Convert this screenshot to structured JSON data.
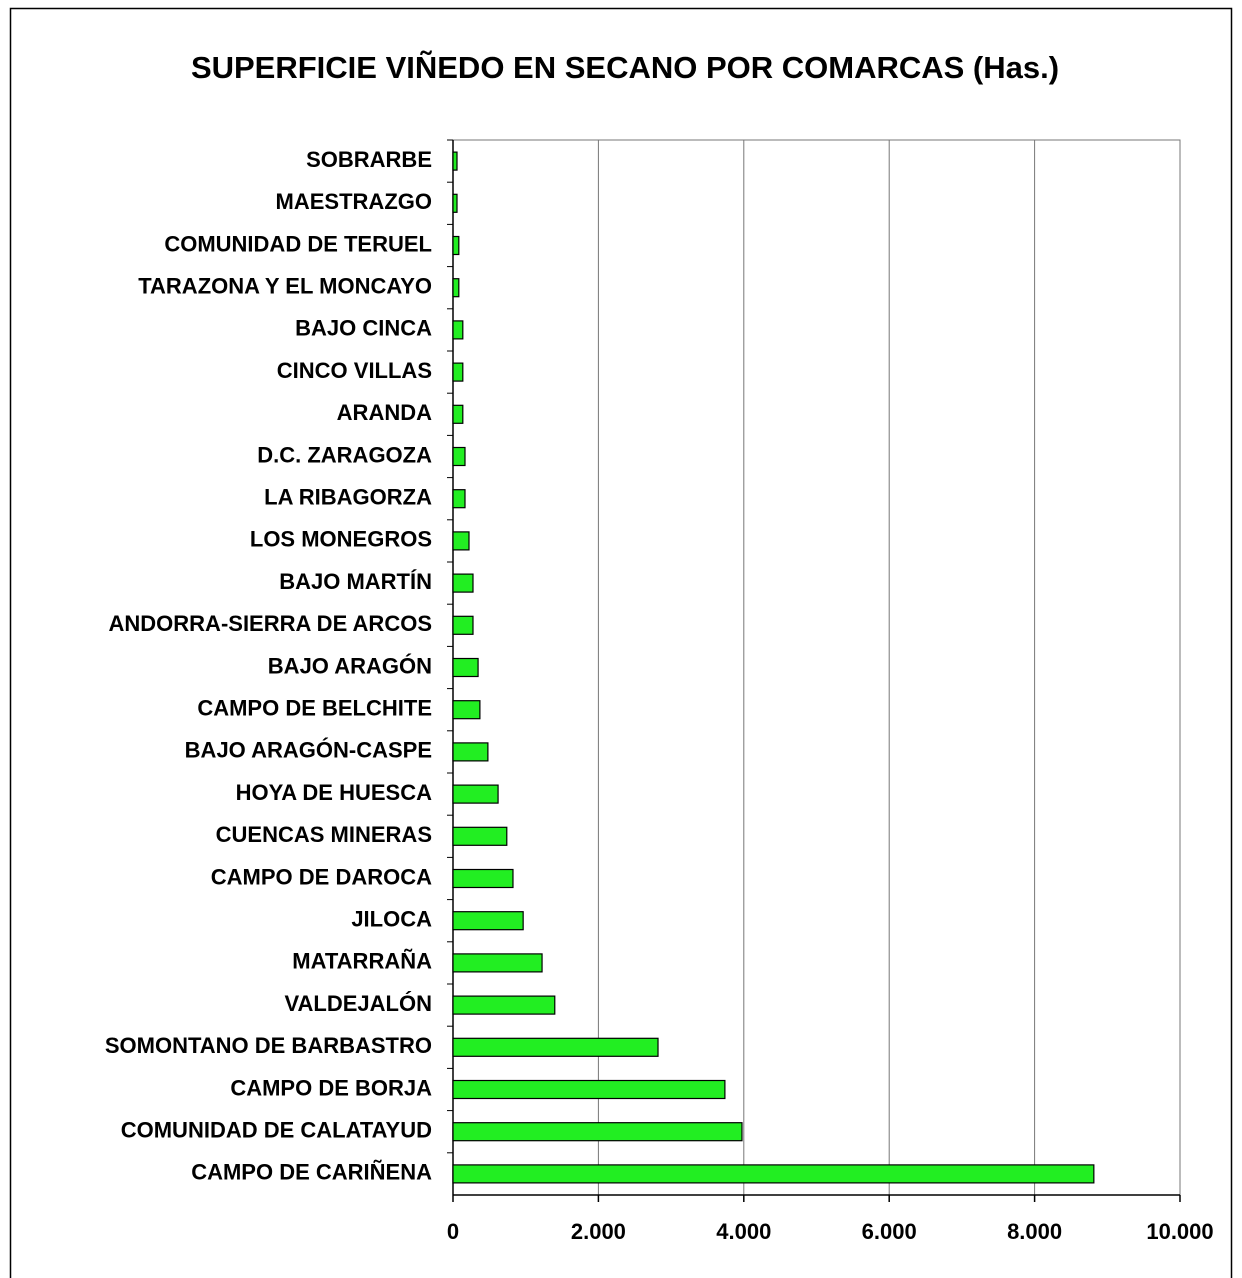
{
  "chart_data": {
    "type": "barh",
    "title": "SUPERFICIE VIÑEDO EN SECANO POR COMARCAS (Has.)",
    "categories": [
      "SOBRARBE",
      "MAESTRAZGO",
      "COMUNIDAD DE TERUEL",
      "TARAZONA Y EL  MONCAYO",
      "BAJO CINCA",
      "CINCO VILLAS",
      "ARANDA",
      "D.C. ZARAGOZA",
      "LA RIBAGORZA",
      "LOS MONEGROS",
      "BAJO MARTÍN",
      "ANDORRA-SIERRA DE ARCOS",
      "BAJO ARAGÓN",
      "CAMPO DE BELCHITE",
      "BAJO ARAGÓN-CASPE",
      "HOYA DE HUESCA",
      "CUENCAS MINERAS",
      "CAMPO DE DAROCA",
      "JILOCA",
      "MATARRAÑA",
      "VALDEJALÓN",
      "SOMONTANO DE BARBASTRO",
      "CAMPO DE BORJA",
      "COMUNIDAD DE CALATAYUD",
      "CAMPO DE CARIÑENA"
    ],
    "values": [
      55,
      55,
      80,
      80,
      135,
      135,
      135,
      165,
      165,
      220,
      275,
      275,
      345,
      370,
      480,
      620,
      740,
      825,
      965,
      1225,
      1400,
      2820,
      3740,
      3975,
      8815
    ],
    "color": "#22ee22",
    "xlim": [
      0,
      10000
    ],
    "xticks": [
      0,
      {
        "value": 2000,
        "label": "2.000"
      },
      {
        "value": 4000,
        "label": "4.000"
      },
      {
        "value": 6000,
        "label": "6.000"
      },
      {
        "value": 8000,
        "label": "8.000"
      },
      {
        "value": 10000,
        "label": "10.000"
      }
    ],
    "grid": true
  }
}
